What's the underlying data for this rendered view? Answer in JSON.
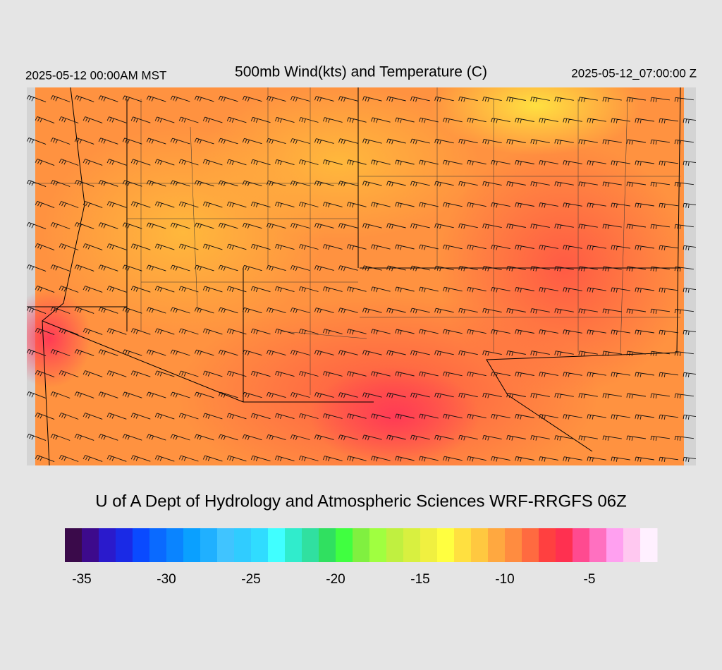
{
  "header": {
    "left": "2025-05-12 00:00AM MST",
    "title": "500mb Wind(kts) and Temperature (C)",
    "right": "2025-05-12_07:00:00 Z"
  },
  "credit": "U of A Dept of Hydrology and Atmospheric Sciences WRF-RRGFS 06Z",
  "colorbar": {
    "lim": [
      -36,
      -1
    ],
    "ticks": [
      -35,
      -30,
      -25,
      -20,
      -15,
      -10,
      -5
    ],
    "colors": [
      "#3a0a4a",
      "#3d0a8c",
      "#2a1acc",
      "#1a2ae6",
      "#0a4aff",
      "#0a6aff",
      "#0a84ff",
      "#0aa0ff",
      "#20b0ff",
      "#40c4ff",
      "#30ccff",
      "#30dcff",
      "#40ffff",
      "#30eccc",
      "#30e0a0",
      "#30e060",
      "#40ff40",
      "#80f040",
      "#a0ff40",
      "#c0f040",
      "#d8f040",
      "#f0f040",
      "#ffff40",
      "#ffe040",
      "#ffc840",
      "#ffa840",
      "#ff8c40",
      "#ff6a40",
      "#ff4040",
      "#ff3050",
      "#ff4a90",
      "#ff70c0",
      "#ffa0f0",
      "#ffc8f0",
      "#fff0ff"
    ]
  }
}
